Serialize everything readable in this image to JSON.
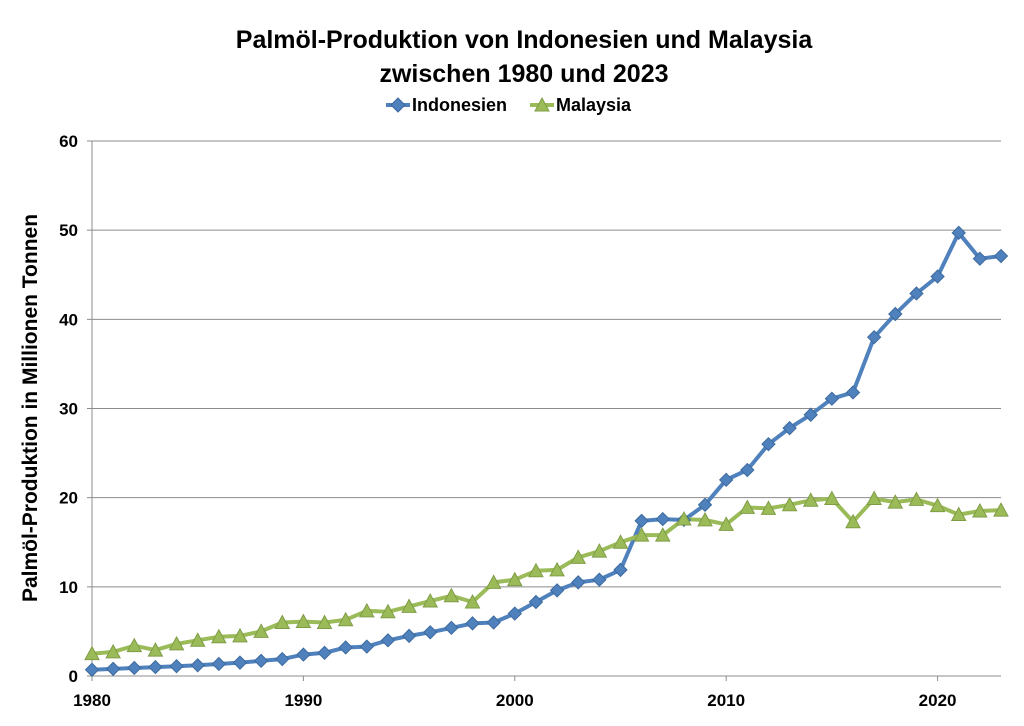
{
  "chart_data": {
    "type": "line",
    "title_line1": "Palmöl-Produktion von Indonesien und Malaysia",
    "title_line2": "zwischen 1980 und 2023",
    "xlabel": "",
    "ylabel": "Palmöl-Produktion in Millionen Tonnen",
    "xlim": [
      1980,
      2023
    ],
    "ylim": [
      0,
      60
    ],
    "x_ticks": [
      1980,
      1990,
      2000,
      2010,
      2020
    ],
    "y_ticks": [
      0,
      10,
      20,
      30,
      40,
      50,
      60
    ],
    "grid": "horizontal",
    "legend_position": "top-center",
    "x": [
      1980,
      1981,
      1982,
      1983,
      1984,
      1985,
      1986,
      1987,
      1988,
      1989,
      1990,
      1991,
      1992,
      1993,
      1994,
      1995,
      1996,
      1997,
      1998,
      1999,
      2000,
      2001,
      2002,
      2003,
      2004,
      2005,
      2006,
      2007,
      2008,
      2009,
      2010,
      2011,
      2012,
      2013,
      2014,
      2015,
      2016,
      2017,
      2018,
      2019,
      2020,
      2021,
      2022,
      2023
    ],
    "series": [
      {
        "name": "Indonesien",
        "color": "#4F81BD",
        "marker": "diamond",
        "values": [
          0.7,
          0.8,
          0.9,
          1.0,
          1.1,
          1.2,
          1.35,
          1.5,
          1.7,
          1.9,
          2.4,
          2.6,
          3.2,
          3.3,
          4.0,
          4.5,
          4.9,
          5.4,
          5.9,
          6.0,
          7.0,
          8.3,
          9.6,
          10.5,
          10.8,
          11.9,
          17.4,
          17.6,
          17.5,
          19.2,
          22.0,
          23.1,
          26.0,
          27.8,
          29.3,
          31.1,
          31.8,
          38.0,
          40.6,
          42.9,
          44.8,
          49.7,
          46.8,
          47.1
        ]
      },
      {
        "name": "Malaysia",
        "color": "#9BBB59",
        "marker": "triangle",
        "values": [
          2.5,
          2.7,
          3.4,
          2.9,
          3.6,
          4.0,
          4.4,
          4.5,
          5.0,
          6.0,
          6.1,
          6.0,
          6.3,
          7.3,
          7.2,
          7.8,
          8.4,
          9.0,
          8.3,
          10.5,
          10.8,
          11.8,
          11.9,
          13.3,
          14.0,
          15.0,
          15.8,
          15.8,
          17.6,
          17.5,
          17.0,
          18.9,
          18.8,
          19.2,
          19.7,
          19.9,
          17.3,
          19.9,
          19.5,
          19.8,
          19.1,
          18.1,
          18.5,
          18.6
        ]
      }
    ]
  }
}
